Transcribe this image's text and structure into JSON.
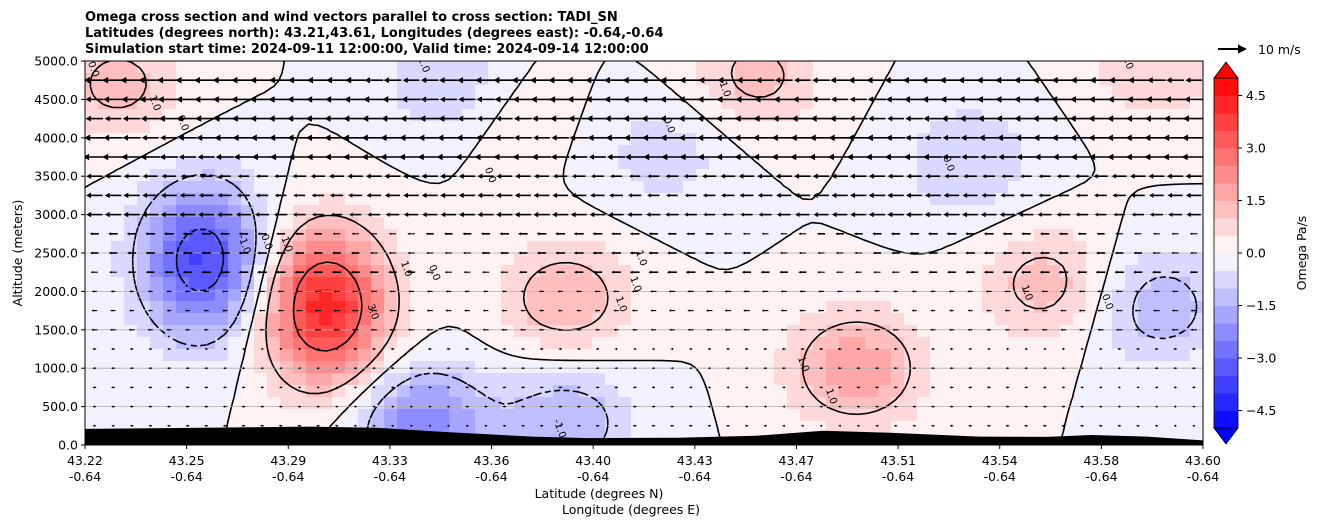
{
  "chart_data": {
    "type": "heatmap",
    "title_lines": [
      "Omega cross section and wind vectors parallel to cross section: TADI_SN",
      "Latitudes (degrees north): 43.21,43.61, Longitudes (degrees east): -0.64,-0.64",
      "Simulation start time: 2024-09-11 12:00:00, Valid time: 2024-09-14 12:00:00"
    ],
    "ylabel": "Altitude (meters)",
    "xlabel_lat": "Latitude (degrees N)",
    "xlabel_lon": "Longitude (degrees E)",
    "ylim": [
      0,
      5000
    ],
    "y_ticks": [
      "0.0",
      "500.0",
      "1000.0",
      "1500.0",
      "2000.0",
      "2500.0",
      "3000.0",
      "3500.0",
      "4000.0",
      "4500.0",
      "5000.0"
    ],
    "y_tick_values": [
      0,
      500,
      1000,
      1500,
      2000,
      2500,
      3000,
      3500,
      4000,
      4500,
      5000
    ],
    "x_ticks_lat": [
      "43.22",
      "43.25",
      "43.29",
      "43.33",
      "43.36",
      "43.40",
      "43.43",
      "43.47",
      "43.51",
      "43.54",
      "43.58",
      "43.60"
    ],
    "x_ticks_lon": [
      "-0.64",
      "-0.64",
      "-0.64",
      "-0.64",
      "-0.64",
      "-0.64",
      "-0.64",
      "-0.64",
      "-0.64",
      "-0.64",
      "-0.64",
      "-0.64"
    ],
    "grid": "horizontal",
    "colorbar": {
      "label": "Omega Pa/s",
      "range": [
        -5,
        5
      ],
      "tick_labels": [
        "4.5",
        "3.0",
        "1.5",
        "0.0",
        "−1.5",
        "−3.0",
        "−4.5"
      ],
      "tick_values": [
        4.5,
        3.0,
        1.5,
        0.0,
        -1.5,
        -3.0,
        -4.5
      ],
      "colors": {
        "negative": "#0000ff",
        "zero": "#ffffff",
        "positive": "#ff0000"
      }
    },
    "vector_key": {
      "label": "10 m/s"
    },
    "contour_labels": [
      {
        "text": "0.0",
        "x": 0.005,
        "y": 4880
      },
      {
        "text": "1.0",
        "x": 0.06,
        "y": 4440
      },
      {
        "text": "0.0",
        "x": 0.085,
        "y": 4180
      },
      {
        "text": "-1.0",
        "x": 0.3,
        "y": 4960
      },
      {
        "text": "1.0",
        "x": 0.57,
        "y": 4620
      },
      {
        "text": "0.0",
        "x": 0.52,
        "y": 4150
      },
      {
        "text": "0.0",
        "x": 0.36,
        "y": 3500
      },
      {
        "text": "-1.0",
        "x": 0.14,
        "y": 2600
      },
      {
        "text": "0.0",
        "x": 0.16,
        "y": 2630
      },
      {
        "text": "1.0",
        "x": 0.178,
        "y": 2600
      },
      {
        "text": "1.0",
        "x": 0.285,
        "y": 2280
      },
      {
        "text": "0.0",
        "x": 0.31,
        "y": 2230
      },
      {
        "text": "3.0",
        "x": 0.255,
        "y": 1720
      },
      {
        "text": "1.0",
        "x": 0.495,
        "y": 2420
      },
      {
        "text": "1.0",
        "x": 0.49,
        "y": 2080
      },
      {
        "text": "1.0",
        "x": 0.477,
        "y": 1820
      },
      {
        "text": "0.0",
        "x": 0.77,
        "y": 3650
      },
      {
        "text": "1.0",
        "x": 0.84,
        "y": 1970
      },
      {
        "text": "0.0",
        "x": 0.912,
        "y": 1850
      },
      {
        "text": "1.0",
        "x": 0.64,
        "y": 1040
      },
      {
        "text": "1.0",
        "x": 0.665,
        "y": 620
      },
      {
        "text": "-1.0",
        "x": 0.422,
        "y": 200
      },
      {
        "text": "1.0",
        "x": 0.93,
        "y": 4980
      }
    ],
    "omega_field": {
      "positive_centers": [
        {
          "x": 0.215,
          "y": 1800,
          "value": 4.3
        },
        {
          "x": 0.43,
          "y": 1900,
          "value": 1.5
        },
        {
          "x": 0.69,
          "y": 1000,
          "value": 1.9
        },
        {
          "x": 0.86,
          "y": 2100,
          "value": 1.3
        },
        {
          "x": 0.6,
          "y": 4800,
          "value": 1.2
        },
        {
          "x": 0.03,
          "y": 4700,
          "value": 1.2
        },
        {
          "x": 0.96,
          "y": 4950,
          "value": 1.0
        },
        {
          "x": 0.37,
          "y": 4400,
          "value": 0.6
        }
      ],
      "negative_centers": [
        {
          "x": 0.105,
          "y": 2400,
          "value": -3.6
        },
        {
          "x": 0.3,
          "y": 300,
          "value": -2.3
        },
        {
          "x": 0.43,
          "y": 300,
          "value": -1.5
        },
        {
          "x": 0.79,
          "y": 3700,
          "value": -1.0
        },
        {
          "x": 0.96,
          "y": 1800,
          "value": -1.4
        },
        {
          "x": 0.33,
          "y": 4700,
          "value": -1.2
        },
        {
          "x": 0.52,
          "y": 3800,
          "value": -0.8
        }
      ]
    },
    "terrain_height_m": [
      {
        "x": 0.0,
        "y": 210
      },
      {
        "x": 0.15,
        "y": 230
      },
      {
        "x": 0.2,
        "y": 240
      },
      {
        "x": 0.26,
        "y": 225
      },
      {
        "x": 0.32,
        "y": 170
      },
      {
        "x": 0.4,
        "y": 110
      },
      {
        "x": 0.45,
        "y": 90
      },
      {
        "x": 0.53,
        "y": 95
      },
      {
        "x": 0.6,
        "y": 120
      },
      {
        "x": 0.66,
        "y": 185
      },
      {
        "x": 0.72,
        "y": 160
      },
      {
        "x": 0.8,
        "y": 110
      },
      {
        "x": 0.86,
        "y": 105
      },
      {
        "x": 0.9,
        "y": 130
      },
      {
        "x": 0.95,
        "y": 110
      },
      {
        "x": 1.0,
        "y": 60
      }
    ]
  }
}
